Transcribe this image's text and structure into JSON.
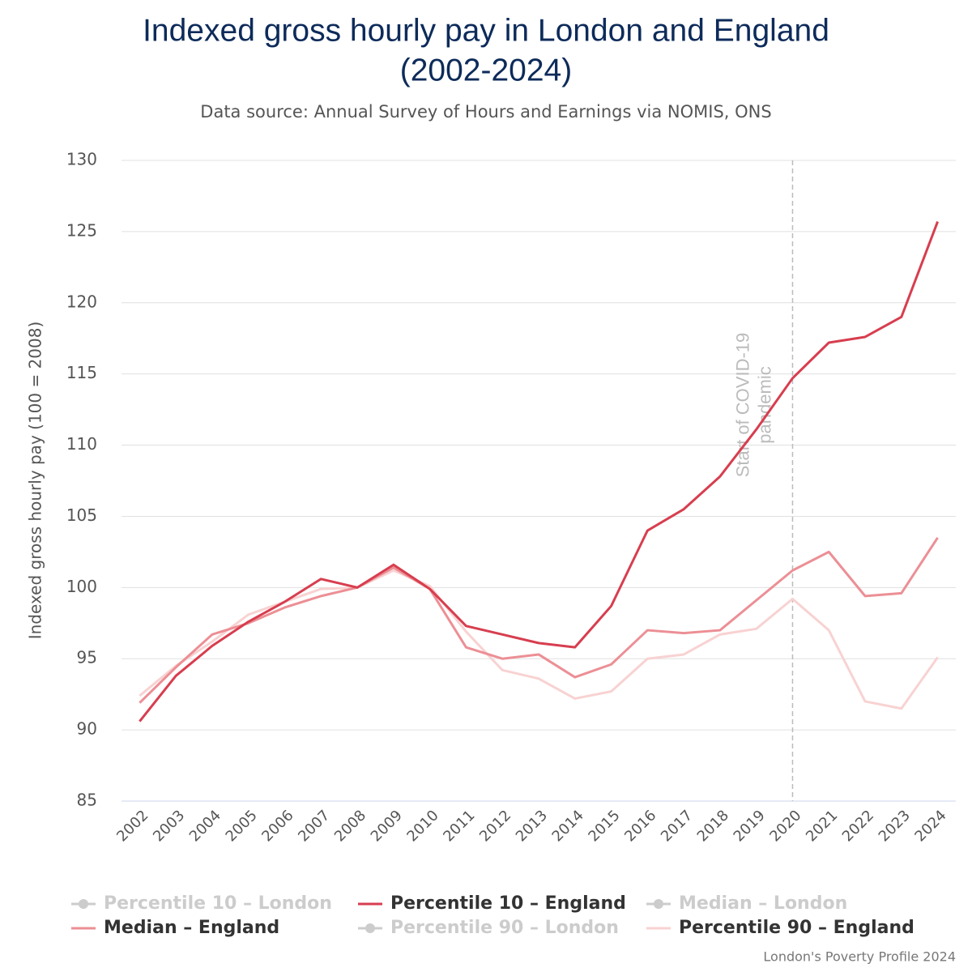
{
  "chart_data": {
    "type": "line",
    "title": [
      "Indexed gross hourly pay in London and England",
      "(2002-2024)"
    ],
    "subtitle": "Data source: Annual Survey of Hours and Earnings via NOMIS, ONS",
    "y_label": "Indexed gross hourly pay (100 = 2008)",
    "credit": "London's Poverty Profile 2024",
    "categories": [
      "2002",
      "2003",
      "2004",
      "2005",
      "2006",
      "2007",
      "2008",
      "2009",
      "2010",
      "2011",
      "2012",
      "2013",
      "2014",
      "2015",
      "2016",
      "2017",
      "2018",
      "2019",
      "2020",
      "2021",
      "2022",
      "2023",
      "2024"
    ],
    "ylim": [
      85,
      130
    ],
    "yticks": [
      85,
      90,
      95,
      100,
      105,
      110,
      115,
      120,
      125,
      130
    ],
    "grid": true,
    "annotation": {
      "category": "2020",
      "text_lines": [
        "Start of COVID-19",
        "pandemic"
      ]
    },
    "series": [
      {
        "name": "Percentile 10 – London",
        "color": "#cccccc",
        "visible": false
      },
      {
        "name": "Percentile 10 – England",
        "color": "#d73e4f",
        "visible": true,
        "values": [
          90.6,
          93.8,
          95.9,
          97.6,
          99.0,
          100.6,
          100.0,
          101.6,
          99.9,
          97.3,
          96.7,
          96.1,
          95.8,
          98.7,
          104.0,
          105.5,
          107.8,
          111.1,
          114.7,
          117.2,
          117.6,
          119.0,
          125.7
        ]
      },
      {
        "name": "Median – London",
        "color": "#cccccc",
        "visible": false
      },
      {
        "name": "Median – England",
        "color": "#ec8f95",
        "visible": true,
        "values": [
          91.9,
          94.4,
          96.7,
          97.5,
          98.6,
          99.4,
          100.0,
          101.4,
          99.9,
          95.8,
          95.0,
          95.3,
          93.7,
          94.6,
          97.0,
          96.8,
          97.0,
          99.1,
          101.2,
          102.5,
          99.4,
          99.6,
          103.5
        ]
      },
      {
        "name": "Percentile 90 – London",
        "color": "#cccccc",
        "visible": false
      },
      {
        "name": "Percentile 90 – England",
        "color": "#f8d2d2",
        "visible": true,
        "values": [
          92.4,
          94.5,
          96.2,
          98.1,
          99.0,
          99.9,
          100.0,
          101.2,
          100.1,
          96.9,
          94.2,
          93.6,
          92.2,
          92.7,
          95.0,
          95.3,
          96.7,
          97.1,
          99.2,
          97.0,
          92.0,
          91.5,
          95.1
        ]
      }
    ]
  }
}
